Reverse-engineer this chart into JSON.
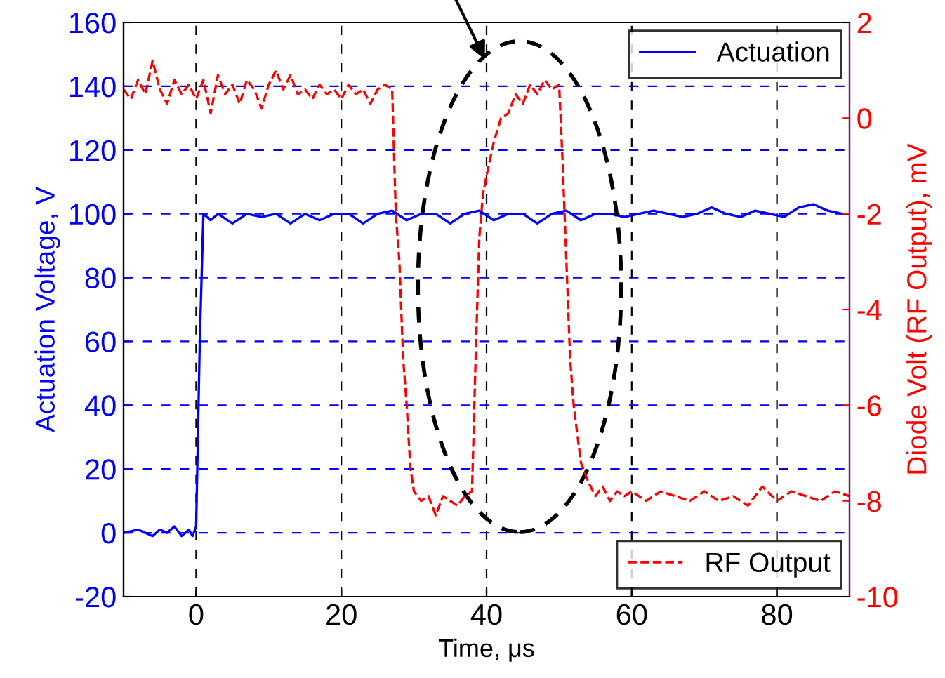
{
  "chart_data": {
    "type": "line",
    "xlabel": "Time, μs",
    "ylabel": "Actuation Voltage, V",
    "y2label": "Diode Volt (RF Output), mV",
    "xlim": [
      -10,
      90
    ],
    "xticks": [
      0,
      20,
      40,
      60,
      80
    ],
    "ylim": [
      -20,
      160
    ],
    "yticks": [
      -20,
      0,
      20,
      40,
      60,
      80,
      100,
      120,
      140,
      160
    ],
    "y2lim": [
      -10,
      2
    ],
    "y2ticks": [
      -10,
      -8,
      -6,
      -4,
      -2,
      0,
      2
    ],
    "grid": true,
    "legend": "right",
    "series": [
      {
        "name": "Actuation",
        "color": "#0000ff",
        "line_style": "solid",
        "axis": "y",
        "x": [
          -10,
          -8,
          -6,
          -5,
          -4,
          -3,
          -2,
          -1,
          -0.5,
          0,
          0.5,
          1,
          2,
          3,
          5,
          7,
          9,
          11,
          13,
          15,
          17,
          19,
          21,
          23,
          25,
          27,
          29,
          31,
          33,
          35,
          37,
          39,
          41,
          43,
          45,
          47,
          49,
          51,
          53,
          55,
          57,
          59,
          61,
          63,
          65,
          67,
          69,
          71,
          73,
          75,
          77,
          79,
          81,
          83,
          85,
          87,
          89,
          90
        ],
        "values": [
          0,
          1,
          -1,
          1,
          0,
          2,
          -1,
          1,
          -1,
          2,
          60,
          100,
          98,
          100,
          97,
          100,
          99,
          100,
          97,
          100,
          98,
          100,
          100,
          97,
          100,
          101,
          98,
          100,
          100,
          97,
          100,
          101,
          98,
          100,
          100,
          97,
          100,
          101,
          98,
          100,
          100,
          99,
          100,
          101,
          100,
          99,
          100,
          102,
          100,
          99,
          101,
          100,
          99,
          102,
          103,
          101,
          100,
          100
        ]
      },
      {
        "name": "RF Output",
        "color": "#ff0000",
        "line_style": "dashed",
        "axis": "y2",
        "x": [
          -10,
          -9,
          -8,
          -7,
          -6,
          -5,
          -4,
          -3,
          -2,
          -1,
          0,
          1,
          2,
          3,
          4,
          5,
          6,
          7,
          8,
          9,
          10,
          11,
          12,
          13,
          14,
          15,
          16,
          17,
          18,
          19,
          20,
          21,
          22,
          23,
          24,
          25,
          26,
          27,
          27.5,
          28,
          28.5,
          29,
          29.5,
          30,
          31,
          32,
          33,
          34,
          35,
          36,
          37,
          38,
          38.5,
          39,
          39.5,
          40,
          41,
          42,
          43,
          44,
          45,
          46,
          47,
          48,
          49,
          50,
          50.5,
          51,
          51.5,
          52,
          53,
          54,
          55,
          56,
          57,
          58,
          59,
          60,
          62,
          64,
          66,
          68,
          70,
          72,
          74,
          76,
          78,
          80,
          82,
          84,
          86,
          88,
          90
        ],
        "values": [
          0.6,
          0.4,
          0.8,
          0.5,
          1.2,
          0.6,
          0.3,
          0.8,
          0.5,
          0.7,
          0.4,
          0.8,
          0.1,
          0.9,
          0.5,
          0.7,
          0.3,
          0.8,
          0.6,
          0.2,
          0.7,
          1.0,
          0.6,
          0.9,
          0.5,
          0.6,
          0.4,
          0.7,
          0.5,
          0.6,
          0.4,
          0.7,
          0.5,
          0.6,
          0.3,
          0.6,
          0.7,
          0.6,
          -2,
          -3,
          -5,
          -6,
          -7.3,
          -7.8,
          -8.0,
          -7.9,
          -8.3,
          -7.9,
          -8.0,
          -8.1,
          -7.9,
          -7.8,
          -5,
          -2.5,
          -1.6,
          -1.2,
          -0.5,
          0,
          0.1,
          0.5,
          0.3,
          0.7,
          0.5,
          0.8,
          0.6,
          0.7,
          -1,
          -3,
          -5,
          -6,
          -7.2,
          -7.6,
          -7.9,
          -7.7,
          -8.0,
          -7.8,
          -7.9,
          -7.8,
          -8.0,
          -7.8,
          -7.9,
          -8.0,
          -7.8,
          -8.0,
          -7.9,
          -8.1,
          -7.7,
          -8.0,
          -7.8,
          -7.9,
          -8.0,
          -7.8,
          -7.9
        ]
      }
    ]
  }
}
